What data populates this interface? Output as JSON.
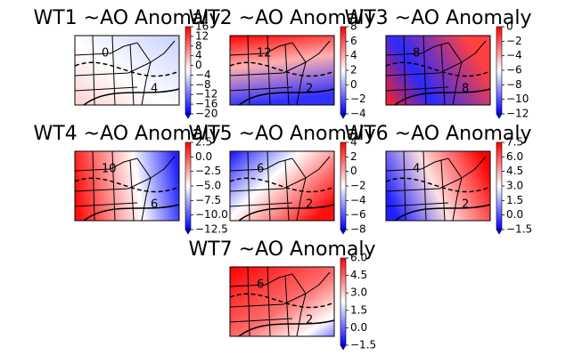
{
  "panels": [
    {
      "title": "WT1 ~AO Anomaly",
      "contour_labels": [
        "0",
        "4"
      ],
      "cbar_lim": [
        -20,
        16
      ],
      "cbar_ticks": [
        16,
        12,
        8,
        4,
        0,
        {
          "value": -4,
          "label": "−4"
        },
        {
          "value": -8,
          "label": "−8"
        },
        {
          "value": -12,
          "label": "−12"
        },
        {
          "value": -16,
          "label": "−16"
        },
        {
          "value": -20,
          "label": "−20"
        }
      ]
    },
    {
      "title": "WT2 ~AO Anomaly",
      "contour_labels": [
        "12",
        "2"
      ],
      "cbar_lim": [
        -4,
        8
      ],
      "cbar_ticks": [
        8,
        6,
        4,
        2,
        0,
        {
          "value": -2,
          "label": "−2"
        },
        {
          "value": -4,
          "label": "−4"
        }
      ]
    },
    {
      "title": "WT3 ~AO Anomaly",
      "contour_labels": [
        "8",
        "8"
      ],
      "cbar_lim": [
        -12,
        0
      ],
      "cbar_ticks": [
        0,
        {
          "value": -2,
          "label": "−2"
        },
        {
          "value": -4,
          "label": "−4"
        },
        {
          "value": -6,
          "label": "−6"
        },
        {
          "value": -8,
          "label": "−8"
        },
        {
          "value": -10,
          "label": "−10"
        },
        {
          "value": -12,
          "label": "−12"
        }
      ]
    },
    {
      "title": "WT4 ~AO Anomaly",
      "contour_labels": [
        "10",
        "6"
      ],
      "cbar_lim": [
        -12.5,
        2.5
      ],
      "cbar_ticks": [
        2.5,
        {
          "value": 0,
          "label": "0.0"
        },
        {
          "value": -2.5,
          "label": "−2.5"
        },
        {
          "value": -5,
          "label": "−5.0"
        },
        {
          "value": -7.5,
          "label": "−7.5"
        },
        {
          "value": -10,
          "label": "−10.0"
        },
        {
          "value": -12.5,
          "label": "−12.5"
        }
      ]
    },
    {
      "title": "WT5 ~AO Anomaly",
      "contour_labels": [
        "6",
        "2"
      ],
      "cbar_lim": [
        -8,
        4
      ],
      "cbar_ticks": [
        4,
        2,
        0,
        {
          "value": -2,
          "label": "−2"
        },
        {
          "value": -4,
          "label": "−4"
        },
        {
          "value": -6,
          "label": "−6"
        },
        {
          "value": -8,
          "label": "−8"
        }
      ]
    },
    {
      "title": "WT6 ~AO Anomaly",
      "contour_labels": [
        "4",
        "2"
      ],
      "cbar_lim": [
        -1.5,
        7.5
      ],
      "cbar_ticks": [
        7.5,
        {
          "value": 6,
          "label": "6.0"
        },
        4.5,
        {
          "value": 3,
          "label": "3.0"
        },
        1.5,
        {
          "value": 0,
          "label": "0.0"
        },
        {
          "value": -1.5,
          "label": "−1.5"
        }
      ]
    },
    {
      "title": "WT7 ~AO Anomaly",
      "contour_labels": [
        "6",
        "2"
      ],
      "cbar_lim": [
        -1.5,
        6
      ],
      "cbar_ticks": [
        {
          "value": 6,
          "label": "6.0"
        },
        4.5,
        {
          "value": 3,
          "label": "3.0"
        },
        1.5,
        {
          "value": 0,
          "label": "0.0"
        },
        {
          "value": -1.5,
          "label": "−1.5"
        }
      ]
    }
  ]
}
